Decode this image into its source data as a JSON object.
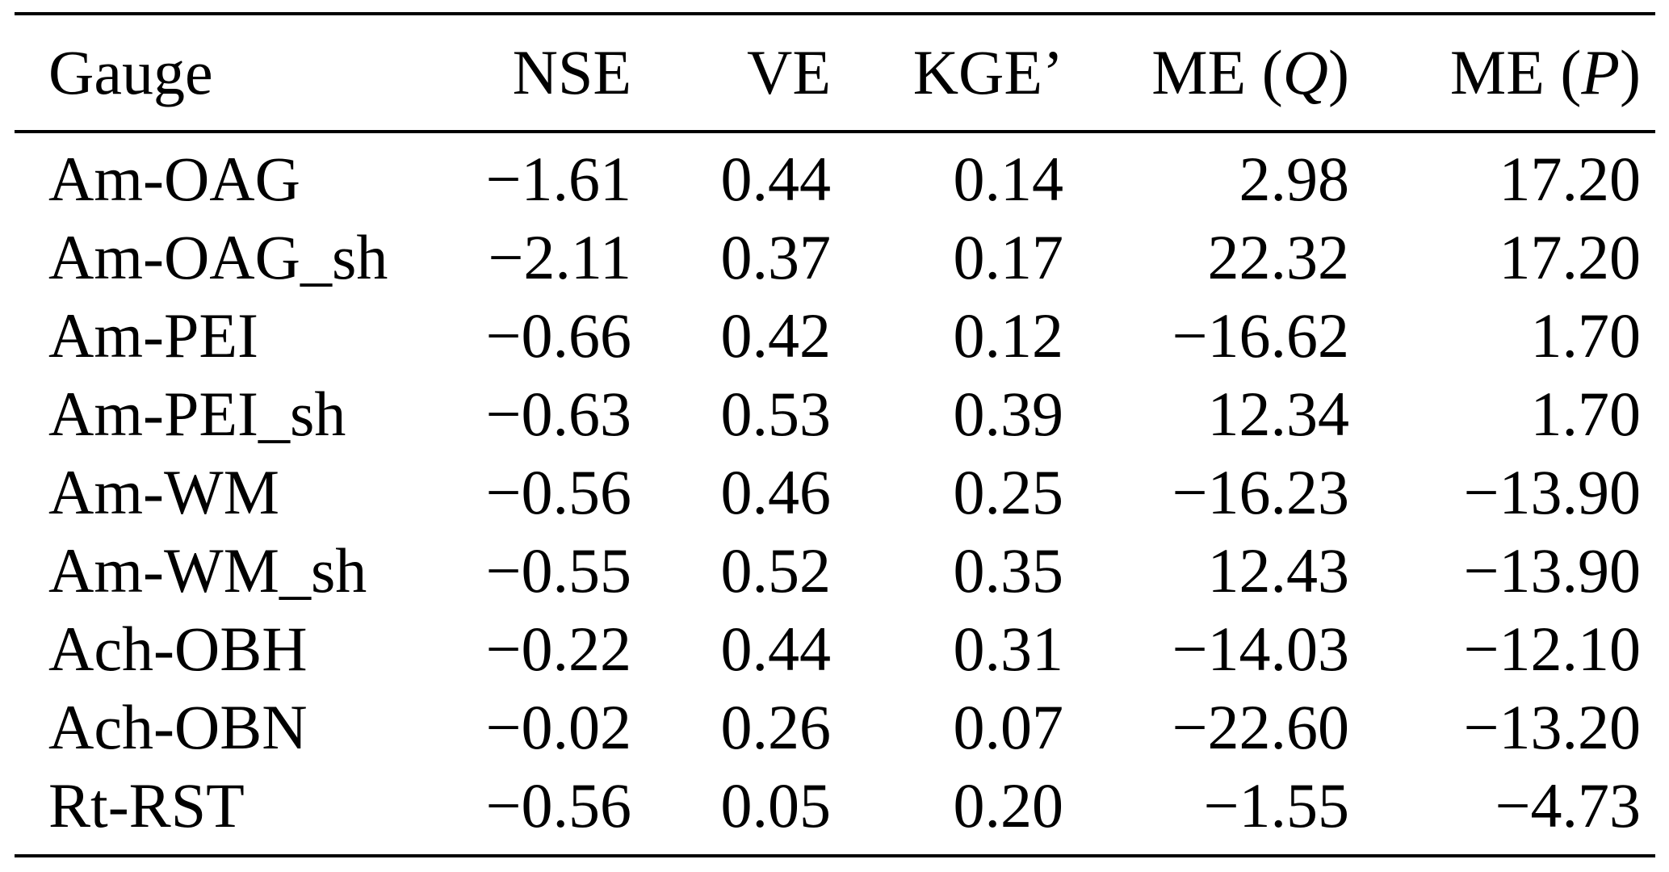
{
  "page": {
    "background": "#ffffff",
    "text_color": "#000000",
    "rule_color": "#000000"
  },
  "table": {
    "header": {
      "gauge": "Gauge",
      "nse": "NSE",
      "ve": "VE",
      "kge": "KGE’",
      "me_q": {
        "prefix": "ME (",
        "variable": "Q",
        "suffix": ")"
      },
      "me_p": {
        "prefix": "ME (",
        "variable": "P",
        "suffix": ")"
      }
    },
    "rows": [
      {
        "gauge": "Am-OAG",
        "nse": "−1.61",
        "ve": "0.44",
        "kge": "0.14",
        "me_q": "2.98",
        "me_p": "17.20"
      },
      {
        "gauge": "Am-OAG_sh",
        "nse": "−2.11",
        "ve": "0.37",
        "kge": "0.17",
        "me_q": "22.32",
        "me_p": "17.20"
      },
      {
        "gauge": "Am-PEI",
        "nse": "−0.66",
        "ve": "0.42",
        "kge": "0.12",
        "me_q": "−16.62",
        "me_p": "1.70"
      },
      {
        "gauge": "Am-PEI_sh",
        "nse": "−0.63",
        "ve": "0.53",
        "kge": "0.39",
        "me_q": "12.34",
        "me_p": "1.70"
      },
      {
        "gauge": "Am-WM",
        "nse": "−0.56",
        "ve": "0.46",
        "kge": "0.25",
        "me_q": "−16.23",
        "me_p": "−13.90"
      },
      {
        "gauge": "Am-WM_sh",
        "nse": "−0.55",
        "ve": "0.52",
        "kge": "0.35",
        "me_q": "12.43",
        "me_p": "−13.90"
      },
      {
        "gauge": "Ach-OBH",
        "nse": "−0.22",
        "ve": "0.44",
        "kge": "0.31",
        "me_q": "−14.03",
        "me_p": "−12.10"
      },
      {
        "gauge": "Ach-OBN",
        "nse": "−0.02",
        "ve": "0.26",
        "kge": "0.07",
        "me_q": "−22.60",
        "me_p": "−13.20"
      },
      {
        "gauge": "Rt-RST",
        "nse": "−0.56",
        "ve": "0.05",
        "kge": "0.20",
        "me_q": "−1.55",
        "me_p": "−4.73"
      }
    ]
  }
}
